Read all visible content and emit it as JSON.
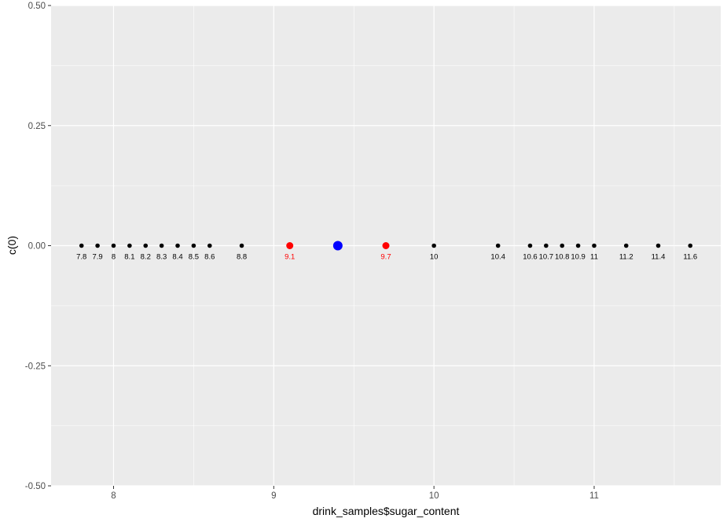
{
  "chart_data": {
    "type": "scatter",
    "xlabel": "drink_samples$sugar_content",
    "ylabel": "c(0)",
    "xlim": [
      7.61,
      11.79
    ],
    "ylim": [
      -0.5,
      0.5
    ],
    "x_ticks": [
      8,
      9,
      10,
      11
    ],
    "x_tick_labels": [
      "8",
      "9",
      "10",
      "11"
    ],
    "y_ticks": [
      -0.5,
      -0.25,
      0,
      0.25,
      0.5
    ],
    "y_tick_labels": [
      "-0.50",
      "-0.25",
      "0.00",
      "0.25",
      "0.50"
    ],
    "grid": true,
    "panel_background": "#EBEBEB",
    "points": [
      {
        "x": 7.8,
        "y": 0,
        "label": "7.8",
        "color": "#000000"
      },
      {
        "x": 7.9,
        "y": 0,
        "label": "7.9",
        "color": "#000000"
      },
      {
        "x": 8.0,
        "y": 0,
        "label": "8",
        "color": "#000000"
      },
      {
        "x": 8.1,
        "y": 0,
        "label": "8.1",
        "color": "#000000"
      },
      {
        "x": 8.2,
        "y": 0,
        "label": "8.2",
        "color": "#000000"
      },
      {
        "x": 8.3,
        "y": 0,
        "label": "8.3",
        "color": "#000000"
      },
      {
        "x": 8.4,
        "y": 0,
        "label": "8.4",
        "color": "#000000"
      },
      {
        "x": 8.5,
        "y": 0,
        "label": "8.5",
        "color": "#000000"
      },
      {
        "x": 8.6,
        "y": 0,
        "label": "8.6",
        "color": "#000000"
      },
      {
        "x": 8.8,
        "y": 0,
        "label": "8.8",
        "color": "#000000"
      },
      {
        "x": 9.1,
        "y": 0,
        "label": "9.1",
        "color": "#FF0000"
      },
      {
        "x": 9.7,
        "y": 0,
        "label": "9.7",
        "color": "#FF0000"
      },
      {
        "x": 10.0,
        "y": 0,
        "label": "10",
        "color": "#000000"
      },
      {
        "x": 10.4,
        "y": 0,
        "label": "10.4",
        "color": "#000000"
      },
      {
        "x": 10.6,
        "y": 0,
        "label": "10.6",
        "color": "#000000"
      },
      {
        "x": 10.7,
        "y": 0,
        "label": "10.7",
        "color": "#000000"
      },
      {
        "x": 10.8,
        "y": 0,
        "label": "10.8",
        "color": "#000000"
      },
      {
        "x": 10.9,
        "y": 0,
        "label": "10.9",
        "color": "#000000"
      },
      {
        "x": 11.0,
        "y": 0,
        "label": "11",
        "color": "#000000"
      },
      {
        "x": 11.2,
        "y": 0,
        "label": "11.2",
        "color": "#000000"
      },
      {
        "x": 11.4,
        "y": 0,
        "label": "11.4",
        "color": "#000000"
      },
      {
        "x": 11.6,
        "y": 0,
        "label": "11.6",
        "color": "#000000"
      }
    ],
    "highlight_point": {
      "x": 9.4,
      "y": 0,
      "color": "#0000FF"
    }
  }
}
